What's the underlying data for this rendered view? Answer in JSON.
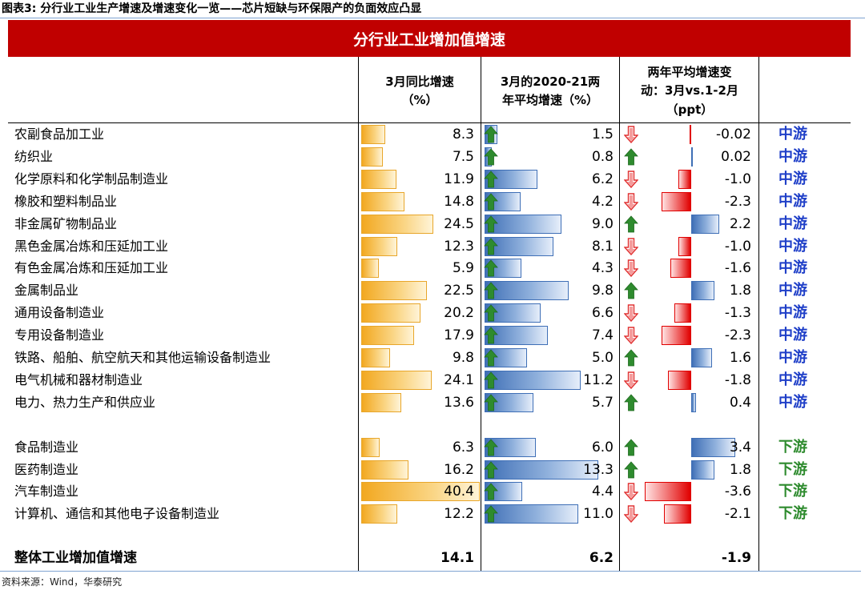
{
  "figure_title": "图表3:   分行业工业生产增速及增速变化一览——芯片短缺与环保限产的负面效应凸显",
  "banner": "分行业工业增加值增速",
  "headers": {
    "col1": "3月同比增速\n（%）",
    "col2": "3月的2020-21两\n年平均增速（%）",
    "col3": "两年平均增速变\n动：3月vs.1-2月\n（ppt）"
  },
  "chart_data": {
    "type": "table",
    "columns": [
      "3月同比增速（%）",
      "3月的2020-21两年平均增速（%）",
      "两年平均增速变动：3月vs.1-2月（ppt）",
      ""
    ],
    "groups": [
      {
        "rows": [
          {
            "industry": "农副食品加工业",
            "yoy": "8.3",
            "avg2y": "1.5",
            "change": "-0.02",
            "stream": "中游"
          },
          {
            "industry": "纺织业",
            "yoy": "7.5",
            "avg2y": "0.8",
            "change": "0.02",
            "stream": "中游"
          },
          {
            "industry": "化学原料和化学制品制造业",
            "yoy": "11.9",
            "avg2y": "6.2",
            "change": "-1.0",
            "stream": "中游"
          },
          {
            "industry": "橡胶和塑料制品业",
            "yoy": "14.8",
            "avg2y": "4.2",
            "change": "-2.3",
            "stream": "中游"
          },
          {
            "industry": "非金属矿物制品业",
            "yoy": "24.5",
            "avg2y": "9.0",
            "change": "2.2",
            "stream": "中游"
          },
          {
            "industry": "黑色金属冶炼和压延加工业",
            "yoy": "12.3",
            "avg2y": "8.1",
            "change": "-1.0",
            "stream": "中游"
          },
          {
            "industry": "有色金属冶炼和压延加工业",
            "yoy": "5.9",
            "avg2y": "4.3",
            "change": "-1.6",
            "stream": "中游"
          },
          {
            "industry": "金属制品业",
            "yoy": "22.5",
            "avg2y": "9.8",
            "change": "1.8",
            "stream": "中游"
          },
          {
            "industry": "通用设备制造业",
            "yoy": "20.2",
            "avg2y": "6.6",
            "change": "-1.3",
            "stream": "中游"
          },
          {
            "industry": "专用设备制造业",
            "yoy": "17.9",
            "avg2y": "7.4",
            "change": "-2.3",
            "stream": "中游"
          },
          {
            "industry": "铁路、船舶、航空航天和其他运输设备制造业",
            "yoy": "9.8",
            "avg2y": "5.0",
            "change": "1.6",
            "stream": "中游"
          },
          {
            "industry": "电气机械和器材制造业",
            "yoy": "24.1",
            "avg2y": "11.2",
            "change": "-1.8",
            "stream": "中游"
          },
          {
            "industry": "电力、热力生产和供应业",
            "yoy": "13.6",
            "avg2y": "5.7",
            "change": "0.4",
            "stream": "中游"
          }
        ]
      },
      {
        "rows": [
          {
            "industry": "食品制造业",
            "yoy": "6.3",
            "avg2y": "6.0",
            "change": "3.4",
            "stream": "下游"
          },
          {
            "industry": "医药制造业",
            "yoy": "16.2",
            "avg2y": "13.3",
            "change": "1.8",
            "stream": "下游"
          },
          {
            "industry": "汽车制造业",
            "yoy": "40.4",
            "avg2y": "4.4",
            "change": "-3.6",
            "stream": "下游"
          },
          {
            "industry": "计算机、通信和其他电子设备制造业",
            "yoy": "12.2",
            "avg2y": "11.0",
            "change": "-2.1",
            "stream": "下游"
          }
        ]
      }
    ],
    "total": {
      "industry": "整体工业增加值增速",
      "yoy": "14.1",
      "avg2y": "6.2",
      "change": "-1.9"
    }
  },
  "colors": {
    "banner": "#c00000",
    "yoy_bar": "#f2a820",
    "avg_bar": "#3f6fb6",
    "neg_change_bar": "#e00000",
    "arrow_up": "#2e8b2e",
    "arrow_down": "#e03030",
    "midstream_text": "#1f3fc8",
    "downstream_text": "#2e8b2e"
  },
  "icons": {
    "up": "green-up-arrow-icon",
    "down": "red-down-arrow-icon"
  },
  "source": "资料来源：Wind，华泰研究"
}
